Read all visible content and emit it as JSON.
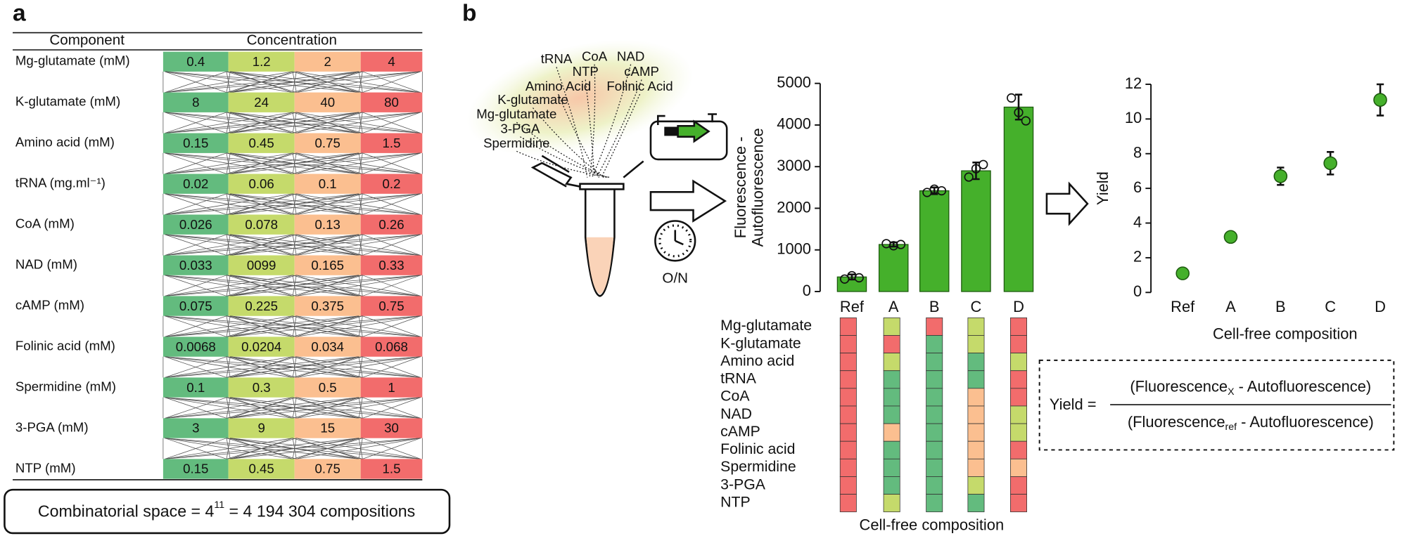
{
  "panel_a": {
    "label": "a",
    "headers": [
      "Component",
      "Concentration"
    ],
    "colors": [
      "#63bb7e",
      "#c5da6b",
      "#fbbf90",
      "#f26c6c"
    ],
    "rows": [
      {
        "name": "Mg-glutamate (mM)",
        "values": [
          "0.4",
          "1.2",
          "2",
          "4"
        ]
      },
      {
        "name": "K-glutamate (mM)",
        "values": [
          "8",
          "24",
          "40",
          "80"
        ]
      },
      {
        "name": "Amino acid (mM)",
        "values": [
          "0.15",
          "0.45",
          "0.75",
          "1.5"
        ]
      },
      {
        "name": "tRNA (mg.ml⁻¹)",
        "values": [
          "0.02",
          "0.06",
          "0.1",
          "0.2"
        ]
      },
      {
        "name": "CoA (mM)",
        "values": [
          "0.026",
          "0.078",
          "0.13",
          "0.26"
        ]
      },
      {
        "name": "NAD (mM)",
        "values": [
          "0.033",
          "0099",
          "0.165",
          "0.33"
        ]
      },
      {
        "name": "cAMP (mM)",
        "values": [
          "0.075",
          "0.225",
          "0.375",
          "0.75"
        ]
      },
      {
        "name": "Folinic acid (mM)",
        "values": [
          "0.0068",
          "0.0204",
          "0.034",
          "0.068"
        ]
      },
      {
        "name": "Spermidine (mM)",
        "values": [
          "0.1",
          "0.3",
          "0.5",
          "1"
        ]
      },
      {
        "name": "3-PGA (mM)",
        "values": [
          "3",
          "9",
          "15",
          "30"
        ]
      },
      {
        "name": "NTP (mM)",
        "values": [
          "0.15",
          "0.45",
          "0.75",
          "1.5"
        ]
      }
    ],
    "footer": [
      "Combinatorial space = 4",
      "11",
      " = 4 194 304 compositions"
    ]
  },
  "panel_b": {
    "label": "b",
    "reagents": [
      "tRNA",
      "CoA",
      "NAD",
      "NTP",
      "cAMP",
      "Amino Acid",
      "Folinic Acid",
      "K-glutamate",
      "Mg-glutamate",
      "3-PGA",
      "Spermidine"
    ],
    "incubation": "O/N",
    "composition": {
      "rows": [
        "Mg-glutamate",
        "K-glutamate",
        "Amino acid",
        "tRNA",
        "CoA",
        "NAD",
        "cAMP",
        "Folinic acid",
        "Spermidine",
        "3-PGA",
        "NTP"
      ],
      "levels": [
        [
          3,
          3,
          3,
          3,
          3,
          3,
          3,
          3,
          3,
          3,
          3
        ],
        [
          1,
          3,
          1,
          0,
          0,
          0,
          2,
          0,
          0,
          0,
          1
        ],
        [
          3,
          0,
          0,
          0,
          0,
          0,
          0,
          0,
          0,
          0,
          0
        ],
        [
          1,
          1,
          0,
          0,
          2,
          2,
          2,
          2,
          2,
          1,
          0
        ],
        [
          3,
          3,
          1,
          3,
          3,
          1,
          1,
          3,
          2,
          3,
          3
        ]
      ]
    },
    "formula": {
      "lhs": "Yield =",
      "numerator": [
        "(Fluorescence",
        "X",
        " - Autofluorescence)"
      ],
      "denominator": [
        "(Fluorescence",
        "ref",
        " - Autofluorescence)"
      ]
    }
  },
  "chart_data": [
    {
      "type": "bar",
      "ylabel": [
        "Fluorescence -",
        "Autofluorescence"
      ],
      "xlabel": "Cell-free composition",
      "categories": [
        "Ref",
        "A",
        "B",
        "C",
        "D"
      ],
      "values": [
        350,
        1130,
        2420,
        2900,
        4430
      ],
      "errors": [
        60,
        50,
        80,
        200,
        300
      ],
      "points": [
        [
          300,
          380,
          330
        ],
        [
          1150,
          1100,
          1130
        ],
        [
          2380,
          2460,
          2420
        ],
        [
          2750,
          2950,
          3050
        ],
        [
          4650,
          4300,
          4100
        ]
      ],
      "color": "#45b02b",
      "ylim": [
        0,
        5000
      ],
      "yticks": [
        0,
        1000,
        2000,
        3000,
        4000,
        5000
      ]
    },
    {
      "type": "scatter",
      "ylabel": "Yield",
      "xlabel": "Cell-free composition",
      "categories": [
        "Ref",
        "A",
        "B",
        "C",
        "D"
      ],
      "values": [
        1.1,
        3.2,
        6.7,
        7.45,
        11.1
      ],
      "errors": [
        0.1,
        0.1,
        0.5,
        0.65,
        0.9
      ],
      "color": "#45b02b",
      "ylim": [
        0,
        12
      ],
      "yticks": [
        0,
        2,
        4,
        6,
        8,
        10,
        12
      ]
    }
  ]
}
